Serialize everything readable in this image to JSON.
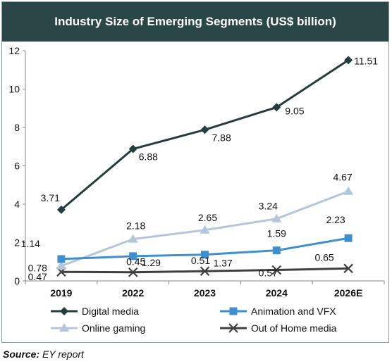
{
  "chart_data": {
    "type": "line",
    "title": "Industry Size of Emerging Segments (US$ billion)",
    "categories": [
      "2019",
      "2022",
      "2023",
      "2024",
      "2026E"
    ],
    "ylim": [
      0,
      12
    ],
    "yticks": [
      "0",
      "2",
      "4",
      "6",
      "8",
      "10",
      "12"
    ],
    "grid": false,
    "legend_position": "bottom",
    "series": [
      {
        "name": "Digital media",
        "values": [
          3.71,
          6.88,
          7.88,
          9.05,
          11.51
        ],
        "labels": [
          "3.71",
          "6.88",
          "7.88",
          "9.05",
          "11.51"
        ],
        "color": "#243d3d",
        "marker": "diamond"
      },
      {
        "name": "Animation and VFX",
        "values": [
          1.14,
          1.29,
          1.37,
          1.59,
          2.23
        ],
        "labels": [
          "1.14",
          "1.29",
          "1.37",
          "1.59",
          "2.23"
        ],
        "color": "#3f8fcf",
        "marker": "square"
      },
      {
        "name": "Online gaming",
        "values": [
          0.78,
          2.18,
          2.65,
          3.24,
          4.67
        ],
        "labels": [
          "0.78",
          "2.18",
          "2.65",
          "3.24",
          "4.67"
        ],
        "color": "#b4c6dc",
        "marker": "triangle"
      },
      {
        "name": "Out of Home media",
        "values": [
          0.47,
          0.45,
          0.51,
          0.57,
          0.65
        ],
        "labels": [
          "0.47",
          "0.45",
          "0.51",
          "0.57",
          "0.65"
        ],
        "color": "#3f3f3f",
        "marker": "x"
      }
    ]
  },
  "source": {
    "label": "Source:",
    "text": "EY report"
  }
}
